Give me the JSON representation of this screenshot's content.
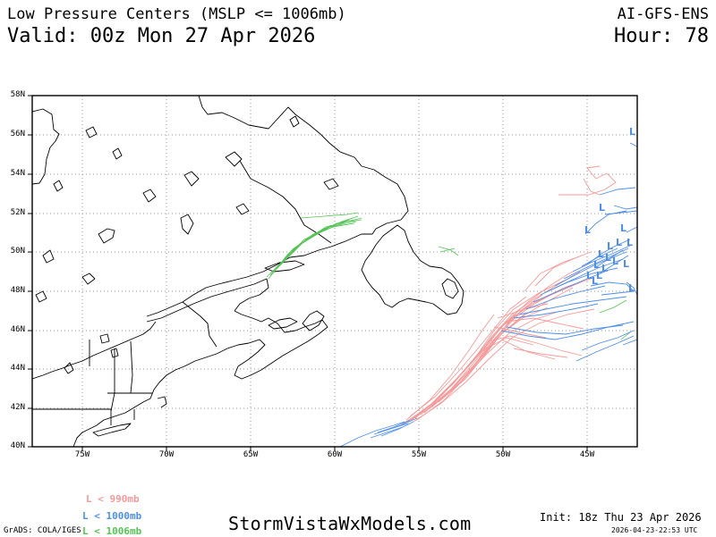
{
  "header": {
    "title": "Low Pressure Centers (MSLP <= 1006mb)",
    "valid": "Valid: 00z Mon 27 Apr 2026",
    "model": "AI-GFS-ENS",
    "hour": "Hour: 78"
  },
  "axes": {
    "lat_labels": [
      "58N",
      "56N",
      "54N",
      "52N",
      "50N",
      "48N",
      "46N",
      "44N",
      "42N",
      "40N"
    ],
    "lon_labels": [
      "75W",
      "70W",
      "65W",
      "60W",
      "55W",
      "50W",
      "45W"
    ]
  },
  "legend": {
    "items": [
      {
        "label": "L < 990mb",
        "color": "#f59a9a"
      },
      {
        "label": "L < 1000mb",
        "color": "#4f8fe6"
      },
      {
        "label": "L < 1006mb",
        "color": "#55c455"
      }
    ]
  },
  "footer": {
    "grads": "GrADS: COLA/IGES",
    "site": "StormVistaWxModels.com",
    "init": "Init: 18z Thu 23 Apr 2026",
    "stamp": "2026-04-23-22:53 UTC"
  },
  "colors": {
    "red": "#f59a9a",
    "blue": "#4f8fe6",
    "green": "#55c455",
    "grid": "#9a9a9a"
  }
}
